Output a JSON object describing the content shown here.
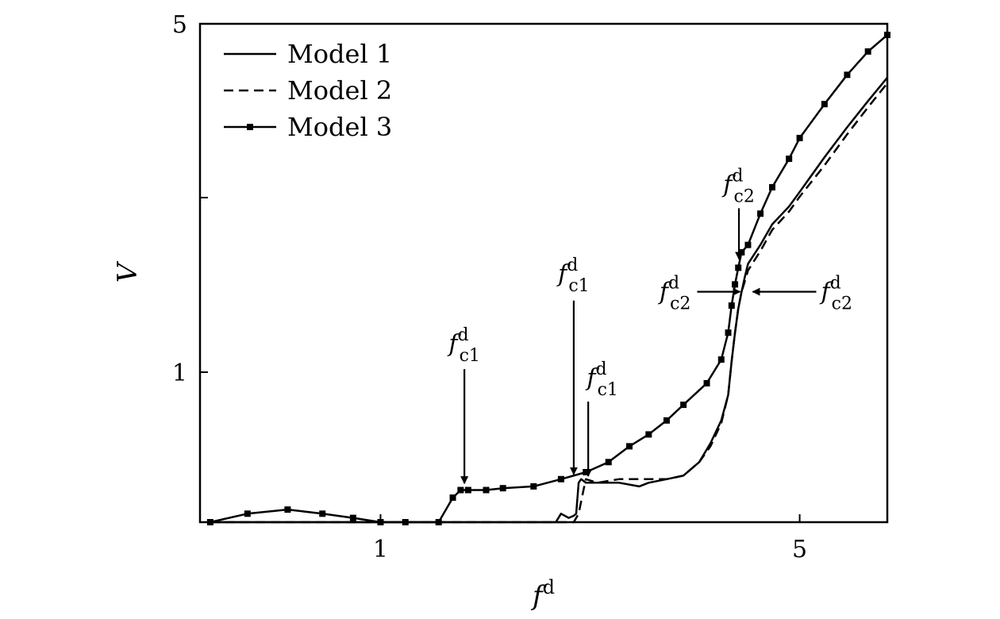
{
  "chart_data": {
    "type": "line",
    "title": "",
    "xlabel": "f",
    "xlabel_sup": "d",
    "ylabel": "V",
    "xscale": "log",
    "yscale": "log",
    "xlim": [
      0.5,
      7
    ],
    "ylim": [
      0.5,
      5
    ],
    "grid": false,
    "legend_position": "top-left",
    "x_ticks": [
      {
        "value": 1,
        "label": "1"
      },
      {
        "value": 5,
        "label": "5"
      }
    ],
    "y_ticks": [
      {
        "value": 1,
        "label": "1"
      },
      {
        "value": 2.24,
        "label": ""
      },
      {
        "value": 5,
        "label": "5"
      }
    ],
    "series": [
      {
        "name": "Model 1",
        "style": "solid",
        "x": [
          0.52,
          0.7,
          1.0,
          1.3,
          1.6,
          1.96,
          2.0,
          2.06,
          2.1,
          2.12,
          2.14,
          2.16,
          2.2,
          2.3,
          2.5,
          2.7,
          2.8,
          3.0,
          3.2,
          3.4,
          3.55,
          3.7,
          3.8,
          3.85,
          3.9,
          3.95,
          4.0,
          4.05,
          4.1,
          4.3,
          4.5,
          4.8,
          5.0,
          5.5,
          6.0,
          6.5,
          7.0
        ],
        "y": [
          0.5,
          0.5,
          0.5,
          0.5,
          0.5,
          0.5,
          0.52,
          0.51,
          0.515,
          0.52,
          0.6,
          0.61,
          0.6,
          0.6,
          0.6,
          0.59,
          0.6,
          0.61,
          0.62,
          0.66,
          0.72,
          0.8,
          0.9,
          1.05,
          1.2,
          1.34,
          1.45,
          1.55,
          1.65,
          1.8,
          1.98,
          2.15,
          2.3,
          2.7,
          3.1,
          3.5,
          3.9
        ]
      },
      {
        "name": "Model 2",
        "style": "dashed",
        "x": [
          0.52,
          0.7,
          1.0,
          1.3,
          1.6,
          1.9,
          2.1,
          2.14,
          2.18,
          2.2,
          2.3,
          2.5,
          2.7,
          2.8,
          3.0,
          3.2,
          3.4,
          3.55,
          3.7,
          3.8,
          3.85,
          3.9,
          3.95,
          4.0,
          4.05,
          4.1,
          4.3,
          4.5,
          4.8,
          5.0,
          5.5,
          6.0,
          6.5,
          7.0
        ],
        "y": [
          0.5,
          0.5,
          0.5,
          0.5,
          0.5,
          0.5,
          0.5,
          0.52,
          0.58,
          0.61,
          0.6,
          0.61,
          0.61,
          0.61,
          0.61,
          0.62,
          0.66,
          0.71,
          0.79,
          0.9,
          1.05,
          1.2,
          1.34,
          1.45,
          1.52,
          1.6,
          1.75,
          1.93,
          2.1,
          2.25,
          2.6,
          3.0,
          3.4,
          3.8
        ]
      },
      {
        "name": "Model 3",
        "style": "solid-square-markers",
        "x": [
          0.52,
          0.6,
          0.7,
          0.8,
          0.9,
          1.0,
          1.1,
          1.25,
          1.32,
          1.36,
          1.4,
          1.5,
          1.6,
          1.8,
          2.0,
          2.2,
          2.4,
          2.6,
          2.8,
          3.0,
          3.2,
          3.5,
          3.7,
          3.8,
          3.85,
          3.9,
          3.95,
          4.0,
          4.1,
          4.3,
          4.5,
          4.8,
          5.0,
          5.5,
          6.0,
          6.5,
          7.0
        ],
        "y": [
          0.5,
          0.52,
          0.53,
          0.52,
          0.51,
          0.5,
          0.5,
          0.5,
          0.56,
          0.58,
          0.58,
          0.58,
          0.585,
          0.59,
          0.61,
          0.63,
          0.66,
          0.71,
          0.75,
          0.8,
          0.86,
          0.95,
          1.06,
          1.2,
          1.36,
          1.5,
          1.62,
          1.74,
          1.8,
          2.08,
          2.35,
          2.68,
          2.95,
          3.45,
          3.95,
          4.4,
          4.75
        ]
      }
    ],
    "annotations": [
      {
        "base": "f",
        "sup": "d",
        "sub": "c1",
        "x": 1.38,
        "y": 0.585,
        "direction": "down"
      },
      {
        "base": "f",
        "sup": "d",
        "sub": "c1",
        "x": 2.1,
        "y": 0.61,
        "direction": "down"
      },
      {
        "base": "f",
        "sup": "d",
        "sub": "c1",
        "x": 2.22,
        "y": 0.605,
        "direction": "down"
      },
      {
        "base": "f",
        "sup": "d",
        "sub": "c2",
        "x": 3.96,
        "y": 1.65,
        "direction": "down"
      },
      {
        "base": "f",
        "sup": "d",
        "sub": "c2",
        "x": 4.05,
        "y": 1.45,
        "direction": "right"
      },
      {
        "base": "f",
        "sup": "d",
        "sub": "c2",
        "x": 4.1,
        "y": 1.45,
        "direction": "left"
      }
    ]
  }
}
